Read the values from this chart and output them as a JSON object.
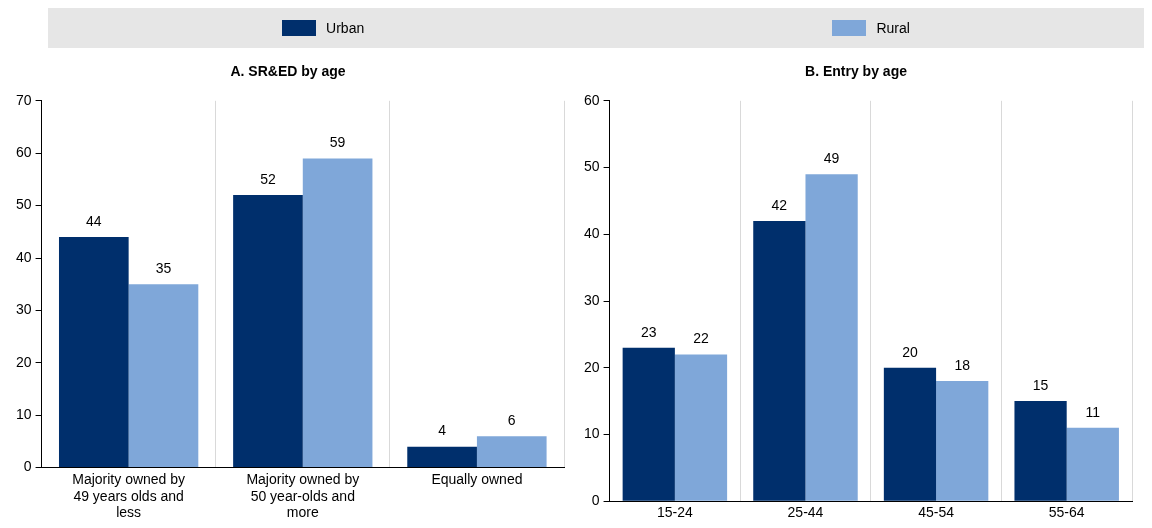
{
  "chart_data": [
    {
      "type": "bar",
      "title": "A. SR&ED by age",
      "categories": [
        "Majority owned by 49 years olds and less",
        "Majority owned by 50 year-olds and more",
        "Equally owned"
      ],
      "series": [
        {
          "name": "Urban",
          "color": "#002f6c",
          "values": [
            44,
            52,
            4
          ]
        },
        {
          "name": "Rural",
          "color": "#7fa7d9",
          "values": [
            35,
            59,
            6
          ]
        }
      ],
      "ylim": [
        0,
        70
      ],
      "yticks": [
        0,
        10,
        20,
        30,
        40,
        50,
        60,
        70
      ],
      "grid": "x",
      "legend": "top",
      "data_labels": true
    },
    {
      "type": "bar",
      "title": "B. Entry by age",
      "categories": [
        "15-24",
        "25-44",
        "45-54",
        "55-64"
      ],
      "series": [
        {
          "color": "#002f6c",
          "values": [
            23,
            42,
            20,
            15
          ]
        },
        {
          "color": "#7fa7d9",
          "values": [
            22,
            49,
            18,
            11
          ]
        }
      ],
      "ylim": [
        0,
        60
      ],
      "yticks": [
        0,
        10,
        20,
        30,
        40,
        50,
        60
      ],
      "grid": "x",
      "data_labels": true
    }
  ]
}
